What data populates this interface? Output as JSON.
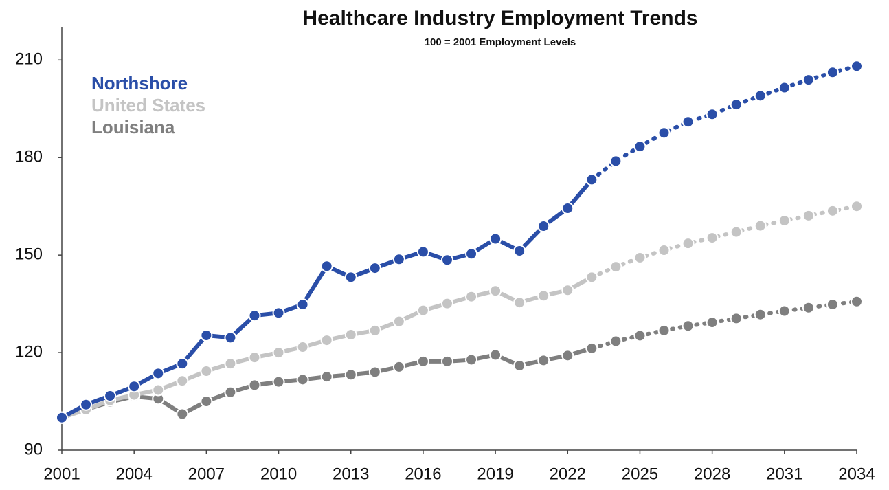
{
  "chart_data": {
    "type": "line",
    "title": "Healthcare Industry Employment Trends",
    "subtitle": "100 = 2001 Employment Levels",
    "x": [
      2001,
      2002,
      2003,
      2004,
      2005,
      2006,
      2007,
      2008,
      2009,
      2010,
      2011,
      2012,
      2013,
      2014,
      2015,
      2016,
      2017,
      2018,
      2019,
      2020,
      2021,
      2022,
      2023,
      2024,
      2025,
      2026,
      2027,
      2028,
      2029,
      2030,
      2031,
      2032,
      2033,
      2034
    ],
    "xlim": [
      2001,
      2034
    ],
    "xticks": [
      2001,
      2004,
      2007,
      2010,
      2013,
      2016,
      2019,
      2022,
      2025,
      2028,
      2031,
      2034
    ],
    "ylim": [
      90,
      220
    ],
    "yticks": [
      90,
      120,
      150,
      180,
      210
    ],
    "dashed_from_x": 2023,
    "legend": "top-left",
    "series": [
      {
        "name": "Northshore",
        "color": "#2a4ea8",
        "values": [
          100,
          104,
          106.7,
          109.6,
          113.6,
          116.6,
          125.3,
          124.6,
          131.4,
          132.2,
          134.8,
          146.6,
          143.2,
          146,
          148.7,
          151,
          148.5,
          150.4,
          155,
          151.3,
          158.9,
          164.4,
          173.2,
          178.9,
          183.4,
          187.6,
          191,
          193.3,
          196.3,
          199,
          201.5,
          203.9,
          206.2,
          208.1
        ]
      },
      {
        "name": "United States",
        "color": "#c4c4c4",
        "values": [
          100,
          102.5,
          105.3,
          107,
          108.5,
          111.3,
          114.3,
          116.6,
          118.5,
          120,
          121.7,
          123.8,
          125.5,
          126.8,
          129.6,
          133,
          135.1,
          137.2,
          139,
          135.4,
          137.5,
          139.2,
          143.2,
          146.4,
          149.2,
          151.5,
          153.6,
          155.3,
          157.1,
          159,
          160.6,
          162.1,
          163.6,
          165
        ]
      },
      {
        "name": "Louisiana",
        "color": "#7f7f7f",
        "values": [
          100,
          102.5,
          104.8,
          106.5,
          105.8,
          101.1,
          105,
          107.8,
          110,
          111,
          111.7,
          112.6,
          113.2,
          114,
          115.6,
          117.3,
          117.3,
          117.8,
          119.3,
          116,
          117.6,
          119.1,
          121.3,
          123.5,
          125.2,
          126.8,
          128.2,
          129.3,
          130.5,
          131.7,
          132.8,
          133.8,
          134.8,
          135.7
        ]
      }
    ]
  }
}
